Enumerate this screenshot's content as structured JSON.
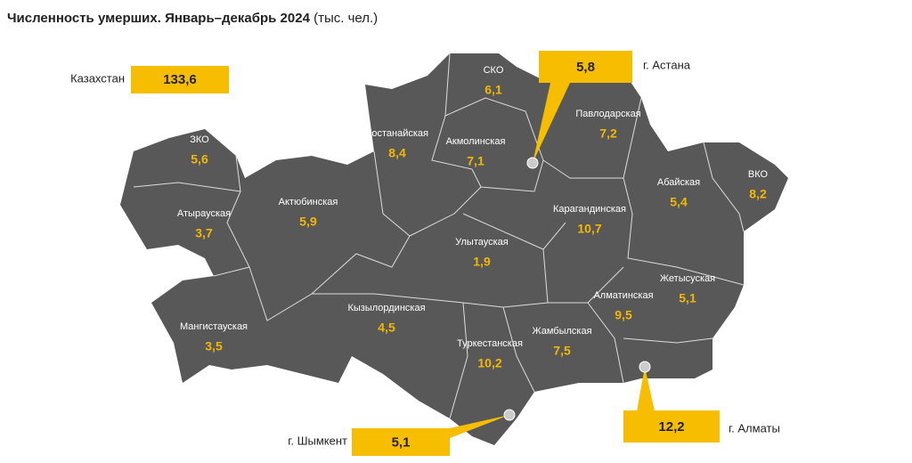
{
  "header": {
    "title": "Численность умерших. Январь–декабрь 2024",
    "units": "(тыс. чел.)"
  },
  "total": {
    "label": "Казахстан",
    "value": "133,6"
  },
  "regions": [
    {
      "name": "ЗКО",
      "value": "5,6"
    },
    {
      "name": "Атырауская",
      "value": "3,7"
    },
    {
      "name": "Актюбинская",
      "value": "5,9"
    },
    {
      "name": "Мангистауская",
      "value": "3,5"
    },
    {
      "name": "Костанайская",
      "value": "8,4"
    },
    {
      "name": "СКО",
      "value": "6,1"
    },
    {
      "name": "Акмолинская",
      "value": "7,1"
    },
    {
      "name": "Павлодарская",
      "value": "7,2"
    },
    {
      "name": "Абайская",
      "value": "5,4"
    },
    {
      "name": "ВКО",
      "value": "8,2"
    },
    {
      "name": "Карагандинская",
      "value": "10,7"
    },
    {
      "name": "Улытауская",
      "value": "1,9"
    },
    {
      "name": "Кызылординская",
      "value": "4,5"
    },
    {
      "name": "Туркестанская",
      "value": "10,2"
    },
    {
      "name": "Жамбылская",
      "value": "7,5"
    },
    {
      "name": "Алматинская",
      "value": "9,5"
    },
    {
      "name": "Жетысуская",
      "value": "5,1"
    }
  ],
  "cities": [
    {
      "name": "г. Астана",
      "value": "5,8"
    },
    {
      "name": "г. Шымкент",
      "value": "5,1"
    },
    {
      "name": "г. Алматы",
      "value": "12,2"
    }
  ]
}
